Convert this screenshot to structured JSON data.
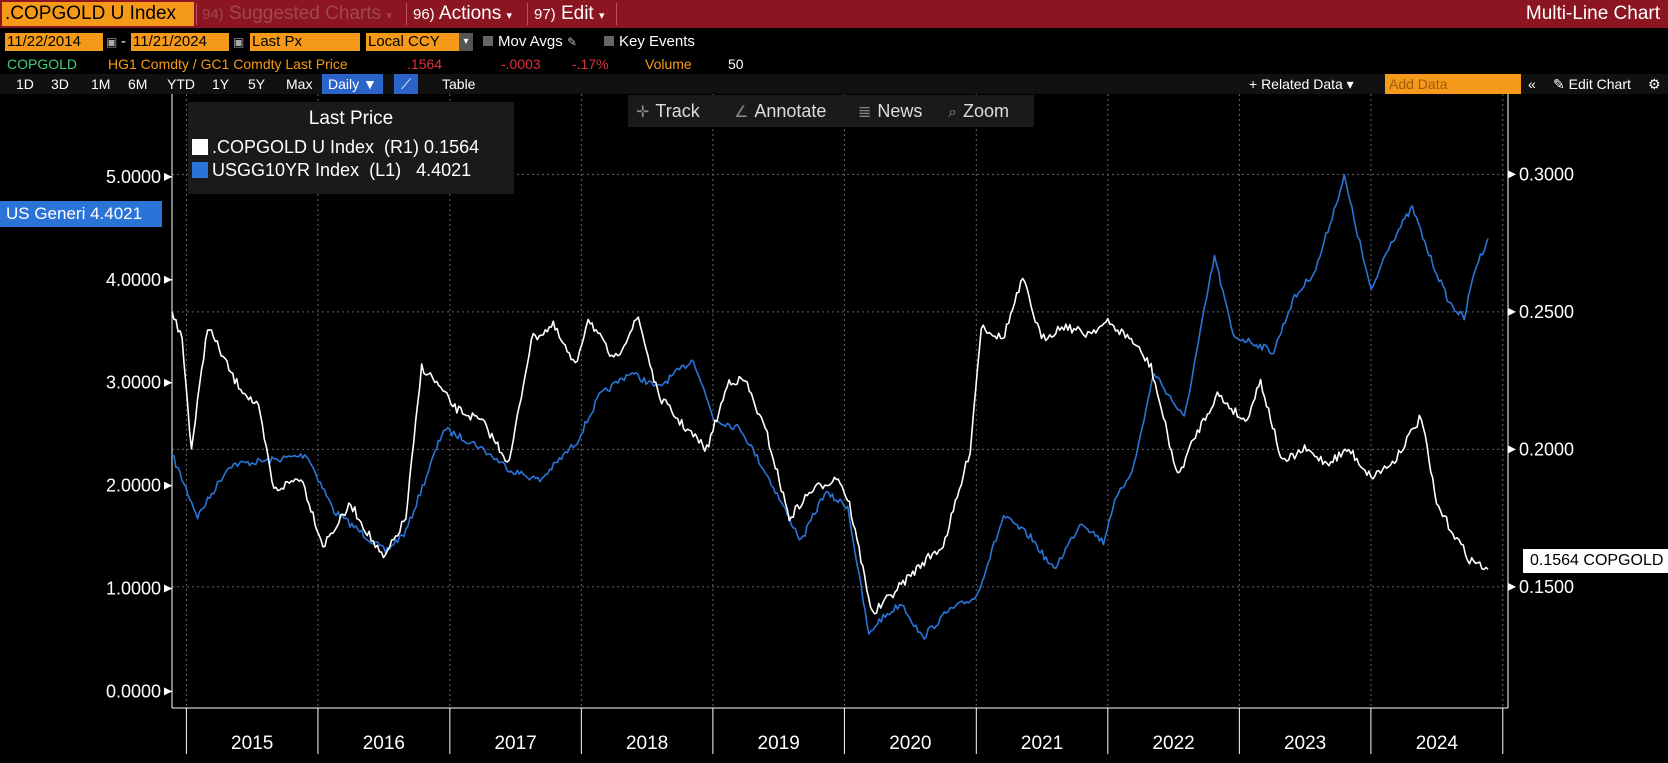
{
  "header": {
    "ticker": ".COPGOLD U Index",
    "menus": [
      {
        "num": "94)",
        "label": "Suggested Charts",
        "dim": true
      },
      {
        "num": "96)",
        "label": "Actions",
        "dim": false
      },
      {
        "num": "97)",
        "label": "Edit",
        "dim": false
      }
    ],
    "right_title": "Multi-Line Chart"
  },
  "controls": {
    "start_date": "11/22/2014",
    "end_date": "11/21/2024",
    "field": "Last Px",
    "currency": "Local CCY",
    "mov_avgs": "Mov Avgs",
    "key_events": "Key Events"
  },
  "quote_line": {
    "name": "COPGOLD",
    "formula": "HG1 Comdty / GC1 Comdty Last Price",
    "last": ".1564",
    "change": "-.0003",
    "pct": "-.17%",
    "volume_label": "Volume",
    "volume": "50"
  },
  "periods": [
    "1D",
    "3D",
    "1M",
    "6M",
    "YTD",
    "1Y",
    "5Y",
    "Max"
  ],
  "frequency": "Daily ▼",
  "table_label": "Table",
  "related_data": "+ Related Data ▾",
  "add_data_placeholder": "Add Data",
  "edit_chart": "Edit Chart",
  "toolbar": {
    "track": "Track",
    "annotate": "Annotate",
    "news": "News",
    "zoom": "Zoom"
  },
  "legend": {
    "title": "Last Price",
    "rows": [
      {
        "label": ".COPGOLD U Index  (R1) 0.1564",
        "color": "#ffffff"
      },
      {
        "label": "USGG10YR Index  (L1)   4.4021",
        "color": "#2a74d8"
      }
    ]
  },
  "tags": {
    "left": "US Generi 4.4021",
    "right": "0.1564 COPGOLD"
  },
  "chart_data": {
    "type": "line",
    "x_labels": [
      "2015",
      "2016",
      "2017",
      "2018",
      "2019",
      "2020",
      "2021",
      "2022",
      "2023",
      "2024"
    ],
    "left_axis": {
      "ticks": [
        "0.0000",
        "1.0000",
        "2.0000",
        "3.0000",
        "4.0000",
        "5.0000"
      ],
      "min": -0.2,
      "max": 5.3
    },
    "right_axis": {
      "ticks": [
        "0.1500",
        "0.2000",
        "0.2500",
        "0.3000"
      ],
      "min": 0.1045,
      "max": 0.3103
    },
    "grid": true,
    "series": [
      {
        "name": "USGG10YR Index",
        "axis": "left",
        "color": "#2a74d8",
        "x": [
          "2014-11-22",
          "2015-02-01",
          "2015-05-01",
          "2015-09-01",
          "2015-12-01",
          "2016-02-15",
          "2016-07-06",
          "2016-09-01",
          "2016-11-20",
          "2016-12-15",
          "2017-03-15",
          "2017-06-20",
          "2017-09-08",
          "2017-12-20",
          "2018-02-20",
          "2018-05-17",
          "2018-08-01",
          "2018-11-08",
          "2019-01-03",
          "2019-03-20",
          "2019-06-01",
          "2019-09-03",
          "2019-11-07",
          "2020-01-10",
          "2020-03-09",
          "2020-04-01",
          "2020-06-08",
          "2020-08-04",
          "2020-10-15",
          "2021-01-01",
          "2021-03-18",
          "2021-06-01",
          "2021-08-04",
          "2021-10-20",
          "2021-12-20",
          "2022-01-15",
          "2022-03-15",
          "2022-05-09",
          "2022-08-01",
          "2022-10-24",
          "2022-12-15",
          "2023-02-01",
          "2023-04-06",
          "2023-05-29",
          "2023-08-01",
          "2023-10-19",
          "2024-01-02",
          "2024-02-15",
          "2024-04-25",
          "2024-06-10",
          "2024-08-05",
          "2024-09-16",
          "2024-10-15",
          "2024-11-21"
        ],
        "y": [
          2.3,
          1.7,
          2.2,
          2.25,
          2.3,
          1.75,
          1.36,
          1.55,
          2.31,
          2.55,
          2.4,
          2.15,
          2.05,
          2.43,
          2.87,
          3.1,
          2.95,
          3.23,
          2.65,
          2.55,
          2.1,
          1.46,
          1.93,
          1.8,
          0.54,
          0.67,
          0.86,
          0.52,
          0.78,
          0.92,
          1.7,
          1.5,
          1.18,
          1.65,
          1.45,
          1.8,
          2.2,
          3.1,
          2.65,
          4.23,
          3.45,
          3.4,
          3.3,
          3.8,
          4.1,
          5.0,
          3.88,
          4.3,
          4.7,
          4.25,
          3.78,
          3.62,
          4.1,
          4.4
        ]
      },
      {
        "name": ".COPGOLD U Index",
        "axis": "right",
        "color": "#ffffff",
        "x": [
          "2014-11-22",
          "2014-12-20",
          "2015-01-15",
          "2015-03-01",
          "2015-05-15",
          "2015-07-20",
          "2015-09-01",
          "2015-11-15",
          "2016-01-15",
          "2016-04-01",
          "2016-07-01",
          "2016-09-01",
          "2016-10-15",
          "2016-11-20",
          "2017-01-15",
          "2017-04-01",
          "2017-06-15",
          "2017-08-15",
          "2017-10-15",
          "2017-12-15",
          "2018-01-20",
          "2018-04-01",
          "2018-06-08",
          "2018-08-01",
          "2018-10-01",
          "2018-12-15",
          "2019-02-15",
          "2019-04-01",
          "2019-06-01",
          "2019-08-01",
          "2019-10-01",
          "2019-12-15",
          "2020-01-15",
          "2020-03-19",
          "2020-06-01",
          "2020-08-15",
          "2020-10-01",
          "2020-11-15",
          "2020-12-15",
          "2021-01-15",
          "2021-03-15",
          "2021-05-10",
          "2021-07-01",
          "2021-09-01",
          "2021-11-01",
          "2022-01-01",
          "2022-03-07",
          "2022-05-01",
          "2022-07-14",
          "2022-09-01",
          "2022-11-01",
          "2023-01-18",
          "2023-03-01",
          "2023-05-01",
          "2023-07-01",
          "2023-09-01",
          "2023-11-01",
          "2024-01-01",
          "2024-03-01",
          "2024-05-20",
          "2024-07-01",
          "2024-08-15",
          "2024-10-01",
          "2024-11-21"
        ],
        "y": [
          0.25,
          0.24,
          0.2,
          0.245,
          0.225,
          0.215,
          0.185,
          0.19,
          0.165,
          0.18,
          0.16,
          0.175,
          0.23,
          0.225,
          0.215,
          0.21,
          0.195,
          0.24,
          0.245,
          0.23,
          0.248,
          0.232,
          0.248,
          0.22,
          0.21,
          0.2,
          0.225,
          0.225,
          0.205,
          0.175,
          0.185,
          0.19,
          0.18,
          0.14,
          0.15,
          0.16,
          0.165,
          0.185,
          0.2,
          0.245,
          0.24,
          0.262,
          0.24,
          0.245,
          0.242,
          0.246,
          0.24,
          0.23,
          0.19,
          0.205,
          0.22,
          0.21,
          0.225,
          0.195,
          0.2,
          0.195,
          0.2,
          0.19,
          0.195,
          0.212,
          0.18,
          0.17,
          0.16,
          0.1564
        ]
      }
    ]
  }
}
